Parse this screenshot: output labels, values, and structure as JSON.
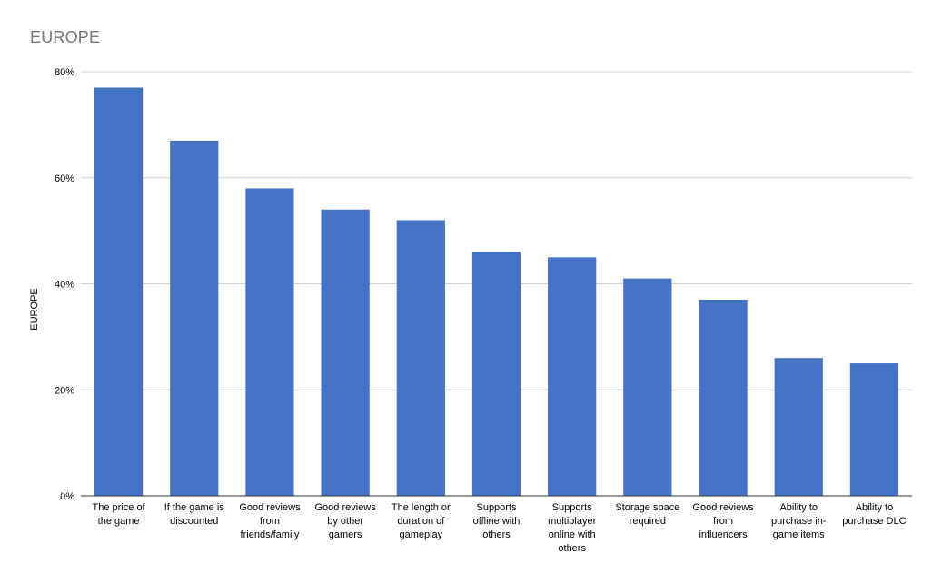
{
  "chart_data": {
    "type": "bar",
    "title": "EUROPE",
    "xlabel": "",
    "ylabel": "EUROPE",
    "ylim": [
      0,
      80
    ],
    "y_ticks": [
      "0%",
      "20%",
      "40%",
      "60%",
      "80%"
    ],
    "y_tick_values": [
      0,
      20,
      40,
      60,
      80
    ],
    "grid": true,
    "bar_color": "#4472C4",
    "categories": [
      [
        "The price of",
        "the game"
      ],
      [
        "If the game is",
        "discounted"
      ],
      [
        "Good reviews",
        "from",
        "friends/family"
      ],
      [
        "Good reviews",
        "by other",
        "gamers"
      ],
      [
        "The length or",
        "duration of",
        "gameplay"
      ],
      [
        "Supports",
        "offline with",
        "others"
      ],
      [
        "Supports",
        "multiplayer",
        "online with",
        "others"
      ],
      [
        "Storage space",
        "required"
      ],
      [
        "Good reviews",
        "from",
        "influencers"
      ],
      [
        "Ability to",
        "purchase in-",
        "game items"
      ],
      [
        "Ability to",
        "purchase DLC"
      ]
    ],
    "values": [
      77,
      67,
      58,
      54,
      52,
      46,
      45,
      41,
      37,
      26,
      25
    ]
  }
}
